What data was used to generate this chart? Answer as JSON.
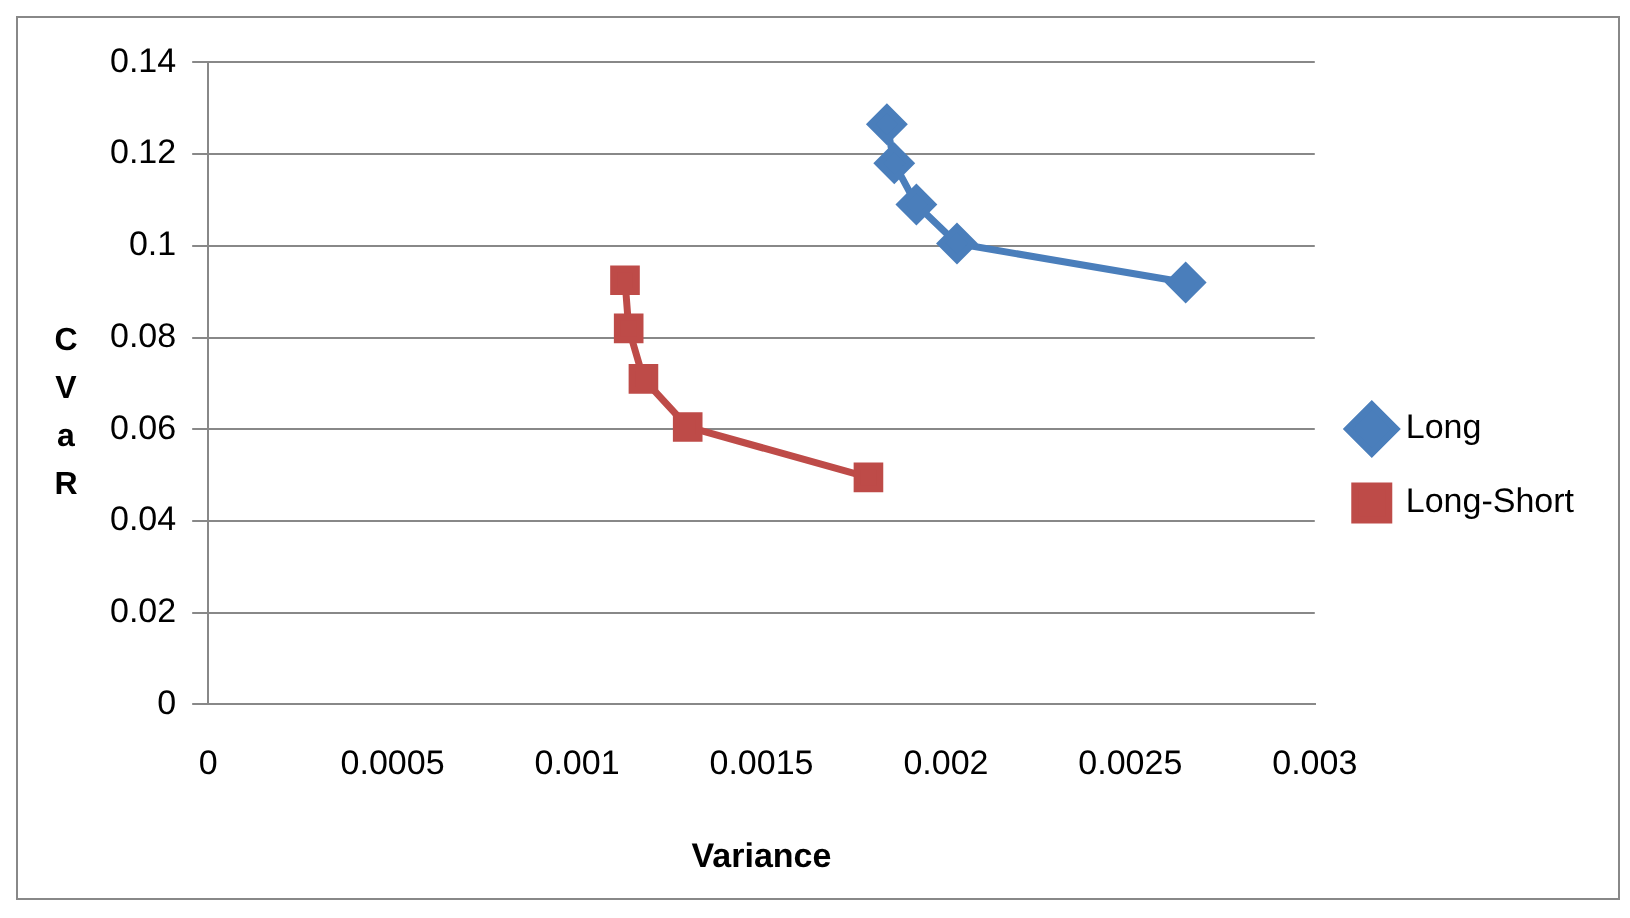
{
  "chart_data": {
    "type": "line",
    "xlabel": "Variance",
    "ylabel": "CVaR",
    "xlim": [
      0,
      0.003
    ],
    "xticks": [
      0,
      0.0005,
      0.001,
      0.0015,
      0.002,
      0.0025,
      0.003
    ],
    "ylim": [
      0,
      0.14
    ],
    "yticks": [
      0,
      0.02,
      0.04,
      0.06,
      0.08,
      0.1,
      0.12,
      0.14
    ],
    "grid": "y",
    "legend": "right",
    "line_style": "solid",
    "series": [
      {
        "name": "Long",
        "color": "#4a7ebb",
        "marker": "diamond",
        "x": [
          0.00184,
          0.00186,
          0.00192,
          0.00203,
          0.00265
        ],
        "values": [
          0.1265,
          0.118,
          0.109,
          0.1005,
          0.092
        ]
      },
      {
        "name": "Long-Short",
        "color": "#be4b48",
        "marker": "square",
        "x": [
          0.00113,
          0.00114,
          0.00118,
          0.0013,
          0.00179
        ],
        "values": [
          0.0925,
          0.082,
          0.071,
          0.0605,
          0.0495
        ]
      }
    ]
  }
}
